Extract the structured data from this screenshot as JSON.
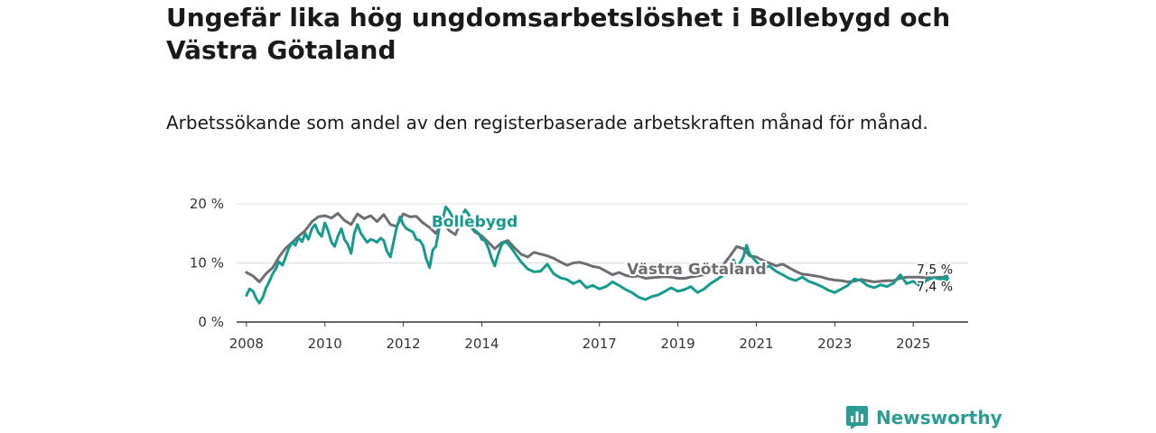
{
  "title": "Ungefär lika hög ungdomsarbetslöshet i Bollebygd och Västra Götaland",
  "subtitle": "Arbetssökande som andel av den registerbaserade arbetskraften månad för månad.",
  "brand": {
    "name": "Newsworthy",
    "icon": "newsworthy-logo-icon",
    "color": "#2b9c93"
  },
  "chart_data": {
    "type": "line",
    "title": "Ungefär lika hög ungdomsarbetslöshet i Bollebygd och Västra Götaland",
    "subtitle": "Arbetssökande som andel av den registerbaserade arbetskraften månad för månad.",
    "xlabel": "",
    "ylabel": "",
    "xlim": [
      2007.75,
      2026.4
    ],
    "ylim": [
      0,
      20
    ],
    "grid": true,
    "x_ticks": [
      {
        "value": 2008,
        "label": "2008"
      },
      {
        "value": 2010,
        "label": "2010"
      },
      {
        "value": 2012,
        "label": "2012"
      },
      {
        "value": 2014,
        "label": "2014"
      },
      {
        "value": 2017,
        "label": "2017"
      },
      {
        "value": 2019,
        "label": "2019"
      },
      {
        "value": 2021,
        "label": "2021"
      },
      {
        "value": 2023,
        "label": "2023"
      },
      {
        "value": 2025,
        "label": "2025"
      }
    ],
    "y_ticks": [
      {
        "value": 0,
        "label": "0 %"
      },
      {
        "value": 10,
        "label": "10 %"
      },
      {
        "value": 20,
        "label": "20 %"
      }
    ],
    "series": [
      {
        "name": "Västra Götaland",
        "label": "Västra Götaland",
        "color": "#6e6e72",
        "end_label": "7,5 %",
        "points": [
          [
            2008.0,
            8.4
          ],
          [
            2008.17,
            7.8
          ],
          [
            2008.33,
            6.8
          ],
          [
            2008.5,
            8.2
          ],
          [
            2008.67,
            9.2
          ],
          [
            2008.83,
            11.0
          ],
          [
            2009.0,
            12.5
          ],
          [
            2009.17,
            13.5
          ],
          [
            2009.33,
            14.5
          ],
          [
            2009.5,
            15.5
          ],
          [
            2009.67,
            17.0
          ],
          [
            2009.83,
            17.8
          ],
          [
            2010.0,
            18.0
          ],
          [
            2010.17,
            17.6
          ],
          [
            2010.33,
            18.4
          ],
          [
            2010.5,
            17.2
          ],
          [
            2010.67,
            16.5
          ],
          [
            2010.83,
            18.3
          ],
          [
            2011.0,
            17.5
          ],
          [
            2011.17,
            18.0
          ],
          [
            2011.33,
            17.0
          ],
          [
            2011.5,
            18.2
          ],
          [
            2011.67,
            16.5
          ],
          [
            2011.83,
            16.2
          ],
          [
            2012.0,
            18.3
          ],
          [
            2012.17,
            17.8
          ],
          [
            2012.33,
            17.9
          ],
          [
            2012.5,
            16.8
          ],
          [
            2012.67,
            16.0
          ],
          [
            2012.83,
            15.0
          ],
          [
            2013.0,
            17.0
          ],
          [
            2013.17,
            15.5
          ],
          [
            2013.33,
            14.8
          ],
          [
            2013.5,
            17.5
          ],
          [
            2013.67,
            16.5
          ],
          [
            2013.83,
            15.2
          ],
          [
            2014.0,
            14.6
          ],
          [
            2014.17,
            13.5
          ],
          [
            2014.33,
            12.4
          ],
          [
            2014.5,
            13.4
          ],
          [
            2014.67,
            13.8
          ],
          [
            2014.83,
            12.6
          ],
          [
            2015.0,
            11.5
          ],
          [
            2015.17,
            11.0
          ],
          [
            2015.33,
            11.8
          ],
          [
            2015.5,
            11.5
          ],
          [
            2015.67,
            11.2
          ],
          [
            2015.83,
            10.8
          ],
          [
            2016.0,
            10.2
          ],
          [
            2016.17,
            9.6
          ],
          [
            2016.33,
            10.0
          ],
          [
            2016.5,
            10.1
          ],
          [
            2016.67,
            9.8
          ],
          [
            2016.83,
            9.4
          ],
          [
            2017.0,
            9.2
          ],
          [
            2017.17,
            8.6
          ],
          [
            2017.33,
            8.0
          ],
          [
            2017.5,
            8.4
          ],
          [
            2017.67,
            7.9
          ],
          [
            2017.83,
            7.7
          ],
          [
            2018.0,
            7.8
          ],
          [
            2018.17,
            7.4
          ],
          [
            2018.33,
            7.5
          ],
          [
            2018.5,
            7.6
          ],
          [
            2018.67,
            7.7
          ],
          [
            2018.83,
            7.6
          ],
          [
            2019.0,
            7.4
          ],
          [
            2019.17,
            7.4
          ],
          [
            2019.33,
            7.6
          ],
          [
            2019.5,
            7.8
          ],
          [
            2019.67,
            8.0
          ],
          [
            2019.83,
            8.5
          ],
          [
            2020.0,
            8.8
          ],
          [
            2020.17,
            9.8
          ],
          [
            2020.33,
            11.2
          ],
          [
            2020.5,
            12.8
          ],
          [
            2020.67,
            12.4
          ],
          [
            2020.83,
            11.2
          ],
          [
            2021.0,
            11.0
          ],
          [
            2021.17,
            10.4
          ],
          [
            2021.33,
            10.0
          ],
          [
            2021.5,
            9.5
          ],
          [
            2021.67,
            9.8
          ],
          [
            2021.83,
            9.2
          ],
          [
            2022.0,
            8.6
          ],
          [
            2022.17,
            8.1
          ],
          [
            2022.33,
            8.0
          ],
          [
            2022.5,
            7.8
          ],
          [
            2022.67,
            7.6
          ],
          [
            2022.83,
            7.3
          ],
          [
            2023.0,
            7.1
          ],
          [
            2023.17,
            7.0
          ],
          [
            2023.33,
            6.8
          ],
          [
            2023.5,
            6.9
          ],
          [
            2023.67,
            7.2
          ],
          [
            2023.83,
            7.0
          ],
          [
            2024.0,
            6.8
          ],
          [
            2024.17,
            6.9
          ],
          [
            2024.33,
            7.0
          ],
          [
            2024.5,
            7.0
          ],
          [
            2024.67,
            7.4
          ],
          [
            2024.83,
            7.6
          ],
          [
            2025.0,
            7.6
          ],
          [
            2025.17,
            7.6
          ],
          [
            2025.33,
            7.5
          ],
          [
            2025.5,
            7.5
          ],
          [
            2025.67,
            7.6
          ],
          [
            2025.83,
            7.5
          ]
        ]
      },
      {
        "name": "Bollebygd",
        "label": "Bollebygd",
        "color": "#159a8f",
        "end_label": "7,4 %",
        "points": [
          [
            2008.0,
            4.5
          ],
          [
            2008.08,
            5.6
          ],
          [
            2008.17,
            5.2
          ],
          [
            2008.25,
            4.0
          ],
          [
            2008.33,
            3.2
          ],
          [
            2008.42,
            4.2
          ],
          [
            2008.5,
            5.8
          ],
          [
            2008.58,
            6.8
          ],
          [
            2008.67,
            8.2
          ],
          [
            2008.75,
            9.0
          ],
          [
            2008.83,
            10.2
          ],
          [
            2008.92,
            9.6
          ],
          [
            2009.0,
            11.0
          ],
          [
            2009.08,
            12.5
          ],
          [
            2009.17,
            13.5
          ],
          [
            2009.25,
            13.0
          ],
          [
            2009.33,
            14.3
          ],
          [
            2009.42,
            13.6
          ],
          [
            2009.5,
            15.0
          ],
          [
            2009.58,
            14.0
          ],
          [
            2009.67,
            15.8
          ],
          [
            2009.75,
            16.5
          ],
          [
            2009.83,
            15.2
          ],
          [
            2009.92,
            14.5
          ],
          [
            2010.0,
            16.8
          ],
          [
            2010.08,
            15.5
          ],
          [
            2010.17,
            13.5
          ],
          [
            2010.25,
            12.8
          ],
          [
            2010.33,
            14.5
          ],
          [
            2010.42,
            15.8
          ],
          [
            2010.5,
            14.0
          ],
          [
            2010.58,
            13.2
          ],
          [
            2010.67,
            11.6
          ],
          [
            2010.75,
            15.0
          ],
          [
            2010.83,
            16.5
          ],
          [
            2010.92,
            15.0
          ],
          [
            2011.0,
            14.2
          ],
          [
            2011.08,
            13.5
          ],
          [
            2011.17,
            14.0
          ],
          [
            2011.25,
            13.8
          ],
          [
            2011.33,
            13.5
          ],
          [
            2011.42,
            14.2
          ],
          [
            2011.5,
            13.8
          ],
          [
            2011.58,
            12.0
          ],
          [
            2011.67,
            11.0
          ],
          [
            2011.75,
            13.5
          ],
          [
            2011.83,
            16.0
          ],
          [
            2011.92,
            17.8
          ],
          [
            2012.0,
            16.5
          ],
          [
            2012.08,
            15.8
          ],
          [
            2012.17,
            15.5
          ],
          [
            2012.25,
            15.2
          ],
          [
            2012.33,
            14.0
          ],
          [
            2012.42,
            13.8
          ],
          [
            2012.5,
            13.0
          ],
          [
            2012.58,
            10.8
          ],
          [
            2012.67,
            9.2
          ],
          [
            2012.75,
            12.2
          ],
          [
            2012.83,
            12.8
          ],
          [
            2012.92,
            16.0
          ],
          [
            2013.0,
            17.2
          ],
          [
            2013.08,
            19.5
          ],
          [
            2013.17,
            18.8
          ],
          [
            2013.25,
            17.8
          ],
          [
            2013.33,
            16.5
          ],
          [
            2013.42,
            16.2
          ],
          [
            2013.5,
            18.0
          ],
          [
            2013.58,
            19.0
          ],
          [
            2013.67,
            18.2
          ],
          [
            2013.75,
            16.0
          ],
          [
            2013.83,
            15.5
          ],
          [
            2013.92,
            15.0
          ],
          [
            2014.0,
            14.0
          ],
          [
            2014.08,
            13.8
          ],
          [
            2014.17,
            12.5
          ],
          [
            2014.25,
            10.8
          ],
          [
            2014.33,
            9.5
          ],
          [
            2014.42,
            11.5
          ],
          [
            2014.5,
            13.0
          ],
          [
            2014.58,
            13.6
          ],
          [
            2014.67,
            13.2
          ],
          [
            2014.75,
            12.6
          ],
          [
            2014.83,
            11.8
          ],
          [
            2015.0,
            10.2
          ],
          [
            2015.17,
            9.0
          ],
          [
            2015.33,
            8.5
          ],
          [
            2015.5,
            8.6
          ],
          [
            2015.67,
            9.8
          ],
          [
            2015.83,
            8.2
          ],
          [
            2016.0,
            7.5
          ],
          [
            2016.17,
            7.2
          ],
          [
            2016.33,
            6.5
          ],
          [
            2016.5,
            7.0
          ],
          [
            2016.67,
            5.8
          ],
          [
            2016.83,
            6.2
          ],
          [
            2017.0,
            5.6
          ],
          [
            2017.17,
            6.0
          ],
          [
            2017.33,
            6.8
          ],
          [
            2017.5,
            6.2
          ],
          [
            2017.67,
            5.5
          ],
          [
            2017.83,
            5.0
          ],
          [
            2018.0,
            4.2
          ],
          [
            2018.17,
            3.8
          ],
          [
            2018.33,
            4.3
          ],
          [
            2018.5,
            4.6
          ],
          [
            2018.67,
            5.2
          ],
          [
            2018.83,
            5.8
          ],
          [
            2019.0,
            5.2
          ],
          [
            2019.17,
            5.5
          ],
          [
            2019.33,
            6.0
          ],
          [
            2019.5,
            5.0
          ],
          [
            2019.67,
            5.6
          ],
          [
            2019.83,
            6.5
          ],
          [
            2020.0,
            7.2
          ],
          [
            2020.17,
            8.0
          ],
          [
            2020.33,
            8.8
          ],
          [
            2020.42,
            10.5
          ],
          [
            2020.5,
            9.0
          ],
          [
            2020.67,
            11.0
          ],
          [
            2020.75,
            13.0
          ],
          [
            2020.83,
            11.5
          ],
          [
            2021.0,
            10.2
          ],
          [
            2021.17,
            9.0
          ],
          [
            2021.33,
            9.5
          ],
          [
            2021.5,
            8.6
          ],
          [
            2021.67,
            8.0
          ],
          [
            2021.83,
            7.4
          ],
          [
            2022.0,
            7.0
          ],
          [
            2022.17,
            7.6
          ],
          [
            2022.33,
            6.9
          ],
          [
            2022.5,
            6.5
          ],
          [
            2022.67,
            6.0
          ],
          [
            2022.83,
            5.4
          ],
          [
            2023.0,
            5.0
          ],
          [
            2023.17,
            5.6
          ],
          [
            2023.33,
            6.2
          ],
          [
            2023.5,
            7.3
          ],
          [
            2023.67,
            7.0
          ],
          [
            2023.83,
            6.2
          ],
          [
            2024.0,
            5.8
          ],
          [
            2024.17,
            6.3
          ],
          [
            2024.33,
            6.0
          ],
          [
            2024.5,
            6.6
          ],
          [
            2024.67,
            8.0
          ],
          [
            2024.83,
            6.5
          ],
          [
            2025.0,
            6.9
          ],
          [
            2025.17,
            6.1
          ],
          [
            2025.33,
            7.0
          ],
          [
            2025.5,
            7.5
          ],
          [
            2025.67,
            7.3
          ],
          [
            2025.83,
            7.4
          ]
        ]
      }
    ]
  }
}
